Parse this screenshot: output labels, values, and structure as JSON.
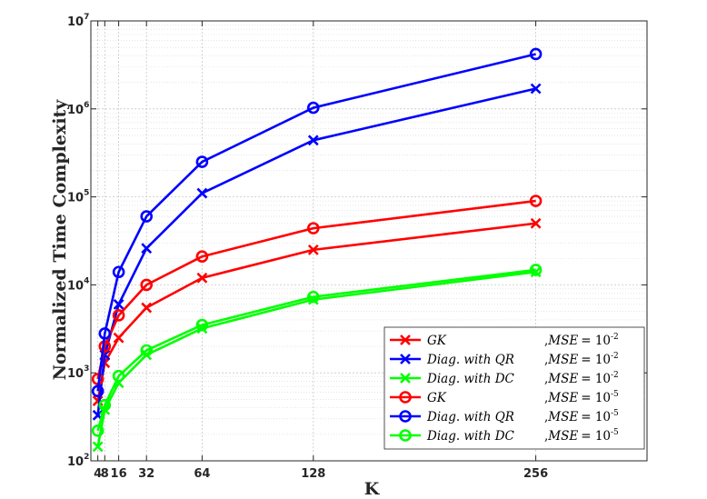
{
  "chart_data": {
    "type": "line",
    "xlabel": "K",
    "ylabel": "Normalized Time Complexity",
    "x": [
      4,
      8,
      16,
      32,
      64,
      128,
      256
    ],
    "x_tick_labels": [
      "4",
      "8",
      "16",
      "32",
      "64",
      "128",
      "256"
    ],
    "xlim": [
      0,
      320
    ],
    "ylim": [
      100,
      10000000
    ],
    "yscale": "log",
    "y_tick_labels": [
      {
        "base": "10",
        "exp": "2"
      },
      {
        "base": "10",
        "exp": "3"
      },
      {
        "base": "10",
        "exp": "4"
      },
      {
        "base": "10",
        "exp": "5"
      },
      {
        "base": "10",
        "exp": "6"
      },
      {
        "base": "10",
        "exp": "7"
      }
    ],
    "grid": true,
    "legend_position": "bottom-right",
    "series": [
      {
        "method": "GK",
        "mse_exp": "-2",
        "color": "#ff0000",
        "marker": "x",
        "values": [
          480,
          1300,
          2500,
          5500,
          12000,
          25000,
          50000
        ]
      },
      {
        "method": "Diag. with QR",
        "mse_exp": "-2",
        "color": "#0000ff",
        "marker": "x",
        "values": [
          330,
          1600,
          6000,
          26000,
          110000,
          440000,
          1700000
        ]
      },
      {
        "method": "Diag. with DC",
        "mse_exp": "-2",
        "color": "#00ff00",
        "marker": "x",
        "values": [
          145,
          380,
          770,
          1600,
          3200,
          6800,
          14000
        ]
      },
      {
        "method": "GK",
        "mse_exp": "-5",
        "color": "#ff0000",
        "marker": "o",
        "values": [
          850,
          2000,
          4500,
          10000,
          21000,
          44000,
          90000
        ]
      },
      {
        "method": "Diag. with QR",
        "mse_exp": "-5",
        "color": "#0000ff",
        "marker": "o",
        "values": [
          620,
          2800,
          14000,
          60000,
          250000,
          1030000,
          4200000
        ]
      },
      {
        "method": "Diag. with DC",
        "mse_exp": "-5",
        "color": "#00ff00",
        "marker": "o",
        "values": [
          220,
          430,
          920,
          1800,
          3500,
          7300,
          14800
        ]
      }
    ]
  }
}
